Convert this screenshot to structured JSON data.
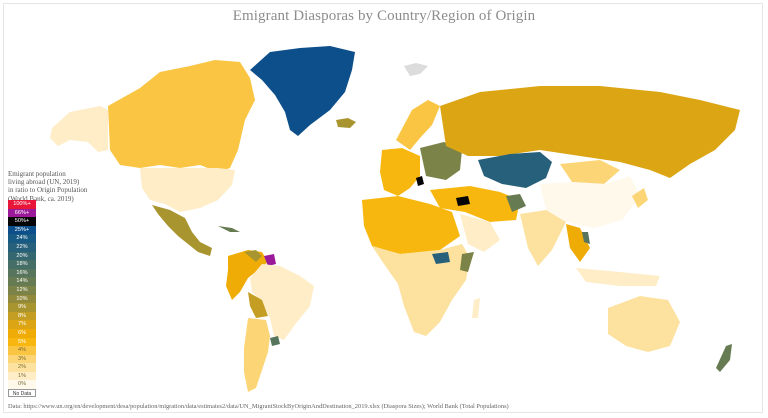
{
  "title": "Emigrant Diasporas by Country/Region of Origin",
  "legend": {
    "caption_lines": [
      "Emigrant population",
      "living abroad (UN, 2019)",
      "in ratio to Origin Population",
      "(World Bank, ca. 2019)"
    ],
    "bins": [
      {
        "label": "100%+",
        "color": "#e8173a",
        "text_color": "#ffffff"
      },
      {
        "label": "66%+",
        "color": "#9a1a9a",
        "text_color": "#ffffff"
      },
      {
        "label": "50%+",
        "color": "#050505",
        "text_color": "#ffffff"
      },
      {
        "label": "25%+",
        "color": "#0c4f8a",
        "text_color": "#ffffff"
      },
      {
        "label": "24%",
        "color": "#175b84",
        "text_color": "#ffffff"
      },
      {
        "label": "22%",
        "color": "#26607a",
        "text_color": "#ffffff"
      },
      {
        "label": "20%",
        "color": "#346770",
        "text_color": "#ffffff"
      },
      {
        "label": "18%",
        "color": "#456e66",
        "text_color": "#ffffff"
      },
      {
        "label": "16%",
        "color": "#56755c",
        "text_color": "#ffffff"
      },
      {
        "label": "14%",
        "color": "#677b52",
        "text_color": "#ffffff"
      },
      {
        "label": "12%",
        "color": "#7b8348",
        "text_color": "#ffffff"
      },
      {
        "label": "10%",
        "color": "#918a3c",
        "text_color": "#ffffff"
      },
      {
        "label": "9%",
        "color": "#a99530",
        "text_color": "#ffffff"
      },
      {
        "label": "8%",
        "color": "#c39e22",
        "text_color": "#ffffff"
      },
      {
        "label": "7%",
        "color": "#dba514",
        "text_color": "#ffffff"
      },
      {
        "label": "6%",
        "color": "#f0ac06",
        "text_color": "#ffffff"
      },
      {
        "label": "5%",
        "color": "#f8b70e",
        "text_color": "#ffffff"
      },
      {
        "label": "4%",
        "color": "#fac543",
        "text_color": "#7a6a30"
      },
      {
        "label": "3%",
        "color": "#fcd577",
        "text_color": "#7a6a30"
      },
      {
        "label": "2%",
        "color": "#fde29f",
        "text_color": "#7a6a30"
      },
      {
        "label": "1%",
        "color": "#feedc7",
        "text_color": "#7a6a30"
      },
      {
        "label": "0%",
        "color": "#fff9ec",
        "text_color": "#7a6a30"
      }
    ],
    "no_data_label": "No Data",
    "no_data_color": "#dcdcdc"
  },
  "regions": [
    {
      "name": "Greenland",
      "bin": "25%+"
    },
    {
      "name": "Canada",
      "bin": "4%"
    },
    {
      "name": "United States",
      "bin": "1%"
    },
    {
      "name": "Alaska",
      "bin": "1%"
    },
    {
      "name": "Mexico",
      "bin": "9%"
    },
    {
      "name": "Suriname",
      "bin": "66%+"
    },
    {
      "name": "Guyana",
      "bin": "9%"
    },
    {
      "name": "Brazil",
      "bin": "1%"
    },
    {
      "name": "Argentina",
      "bin": "3%"
    },
    {
      "name": "Uruguay",
      "bin": "16%"
    },
    {
      "name": "Russia",
      "bin": "7%"
    },
    {
      "name": "Kazakhstan",
      "bin": "22%"
    },
    {
      "name": "Syria",
      "bin": "50%+"
    },
    {
      "name": "Bosnia",
      "bin": "50%+"
    },
    {
      "name": "Afghanistan",
      "bin": "14%"
    },
    {
      "name": "China",
      "bin": "0%"
    },
    {
      "name": "Australia",
      "bin": "3%"
    },
    {
      "name": "New Zealand",
      "bin": "14%"
    },
    {
      "name": "South Sudan",
      "bin": "22%"
    },
    {
      "name": "Iceland",
      "bin": "10%"
    },
    {
      "name": "Svalbard",
      "bin": "No Data"
    }
  ],
  "source": "Data: https://www.un.org/en/development/desa/population/migration/data/estimates2/data/UN_MigrantStockByOriginAndDestination_2019.xlsx (Diaspora Sizes); World Bank (Total Populations)"
}
